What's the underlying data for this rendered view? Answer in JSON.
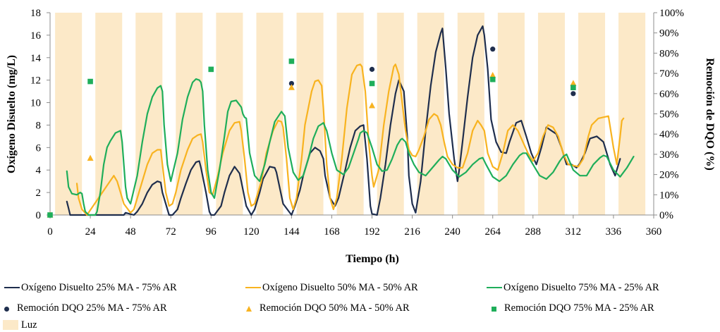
{
  "chart_data": {
    "type": "line",
    "xlabel": "Tiempo (h)",
    "ylabel": "Oxígeno Disuelto (mg/L)",
    "y2label": "Remoción de DQO (%)",
    "xlim": [
      0,
      360
    ],
    "ylim": [
      0,
      18
    ],
    "y2lim": [
      0,
      100
    ],
    "x_ticks": [
      0,
      24,
      48,
      72,
      96,
      120,
      144,
      168,
      192,
      216,
      240,
      264,
      288,
      312,
      336,
      360
    ],
    "y_ticks": [
      0,
      2,
      4,
      6,
      8,
      10,
      12,
      14,
      16,
      18
    ],
    "y2_ticks": [
      "0%",
      "10%",
      "20%",
      "30%",
      "40%",
      "50%",
      "60%",
      "70%",
      "80%",
      "90%",
      "100%"
    ],
    "grid": false,
    "legend_position": "bottom",
    "light_periods": {
      "name": "Luz",
      "color": "#FCE9C8",
      "intervals": [
        [
          3,
          19
        ],
        [
          27,
          43
        ],
        [
          51,
          67
        ],
        [
          75,
          91
        ],
        [
          99,
          115
        ],
        [
          123,
          139
        ],
        [
          147,
          163
        ],
        [
          171,
          187
        ],
        [
          195,
          211
        ],
        [
          219,
          235
        ],
        [
          243,
          259
        ],
        [
          267,
          283
        ],
        [
          291,
          307
        ],
        [
          315,
          331
        ],
        [
          339,
          355
        ]
      ]
    },
    "series": [
      {
        "name": "Oxígeno Disuelto 25% MA - 75% AR",
        "type": "line",
        "color": "#1F2E4D",
        "x": [
          10,
          11,
          12,
          14,
          44,
          45,
          50,
          52,
          55,
          58,
          61,
          64,
          66,
          67,
          70,
          71,
          73,
          76,
          78,
          81,
          84,
          87,
          89,
          90,
          93,
          95,
          96,
          98,
          102,
          104,
          107,
          110,
          113,
          114,
          117,
          120,
          122,
          125,
          127,
          131,
          134,
          135,
          139,
          144,
          146,
          149,
          151,
          155,
          158,
          161,
          163,
          164,
          167,
          170,
          172,
          176,
          179,
          182,
          185,
          187,
          189,
          191,
          192,
          195,
          197,
          200,
          203,
          206,
          208,
          211,
          213,
          214,
          216,
          218,
          221,
          224,
          227,
          230,
          233,
          234,
          236,
          238,
          241,
          243,
          244,
          246,
          249,
          252,
          255,
          258,
          259,
          261,
          263,
          266,
          269,
          272,
          274,
          278,
          281,
          284,
          287,
          290,
          293,
          296,
          299,
          302,
          305,
          308,
          311,
          314,
          316,
          319,
          322,
          326,
          330,
          334,
          337,
          340
        ],
        "y": [
          1.2,
          0.6,
          0,
          0,
          0,
          0.2,
          0,
          0.3,
          1.0,
          2.0,
          2.7,
          3.0,
          2.9,
          2.0,
          0.5,
          0,
          0,
          0.5,
          1.5,
          2.8,
          4.0,
          4.7,
          4.8,
          4.2,
          2.0,
          0.3,
          0,
          0,
          0.8,
          2.0,
          3.5,
          4.3,
          3.7,
          3.0,
          0.8,
          0,
          0.5,
          2.0,
          3.2,
          4.3,
          4.2,
          3.8,
          1.0,
          0,
          0.8,
          2.2,
          3.5,
          5.5,
          6.0,
          5.7,
          5.0,
          3.5,
          1.5,
          0.8,
          1.5,
          4.0,
          6.0,
          7.5,
          7.9,
          8.0,
          5.0,
          0.8,
          0.1,
          0,
          1.5,
          4.5,
          8.0,
          10.8,
          12.0,
          11.0,
          7.0,
          3.5,
          1.0,
          0.2,
          3.0,
          7.5,
          11.5,
          14.5,
          16.2,
          16.6,
          13.0,
          9.0,
          5.0,
          3.0,
          4.0,
          6.5,
          10.5,
          14.0,
          16.0,
          16.8,
          16.0,
          13.0,
          8.5,
          6.5,
          5.6,
          5.5,
          6.5,
          8.2,
          8.4,
          7.0,
          5.5,
          4.5,
          6.0,
          7.8,
          7.5,
          7.2,
          6.0,
          4.5,
          4.5,
          4.2,
          4.6,
          5.5,
          6.8,
          7.0,
          6.5,
          4.5,
          3.5,
          5.0
        ]
      },
      {
        "name": "Oxígeno Disuelto 50% MA - 50% AR",
        "type": "line",
        "color": "#F8B320",
        "x": [
          16,
          17,
          19,
          22,
          38,
          40,
          42,
          44,
          48,
          50,
          54,
          58,
          61,
          64,
          66,
          67,
          69,
          71,
          73,
          75,
          78,
          82,
          85,
          88,
          90,
          91,
          93,
          95,
          97,
          100,
          103,
          107,
          110,
          113,
          114,
          116,
          118,
          120,
          122,
          126,
          129,
          133,
          136,
          138,
          139,
          141,
          143,
          145,
          147,
          150,
          152,
          156,
          158,
          160,
          162,
          163,
          165,
          167,
          169,
          171,
          174,
          177,
          180,
          183,
          185,
          186,
          188,
          190,
          192,
          193,
          196,
          199,
          202,
          205,
          206,
          208,
          210,
          212,
          214,
          216,
          218,
          220,
          223,
          226,
          229,
          231,
          233,
          235,
          237,
          240,
          243,
          246,
          249,
          252,
          255,
          257,
          259,
          261,
          264,
          267,
          270,
          273,
          276,
          279,
          282,
          285,
          288,
          291,
          294,
          297,
          300,
          303,
          306,
          309,
          312,
          315,
          318,
          321,
          323,
          327,
          330,
          333,
          336,
          338,
          340,
          341,
          342
        ],
        "y": [
          2.8,
          1.5,
          0.5,
          0,
          3.5,
          3.0,
          2.0,
          1.0,
          0.2,
          0.5,
          2.5,
          4.5,
          5.5,
          5.8,
          5.8,
          4.5,
          2.0,
          0.8,
          1.0,
          2.0,
          4.0,
          5.8,
          6.8,
          7.1,
          7.2,
          6.5,
          4.0,
          2.0,
          1.8,
          3.5,
          5.5,
          7.5,
          8.2,
          8.3,
          7.5,
          5.0,
          2.0,
          0.8,
          1.0,
          3.0,
          5.5,
          7.5,
          8.4,
          8.3,
          7.8,
          5.0,
          1.5,
          0.5,
          1.5,
          5.0,
          8.0,
          11.0,
          11.9,
          12.0,
          11.5,
          9.5,
          4.5,
          1.5,
          0.5,
          1.5,
          5.0,
          9.5,
          12.5,
          13.3,
          13.4,
          13.2,
          11.0,
          6.5,
          3.5,
          2.5,
          4.0,
          8.0,
          11.0,
          13.2,
          13.4,
          12.5,
          10.0,
          7.5,
          5.8,
          5.3,
          5.2,
          5.8,
          7.0,
          8.5,
          9.0,
          8.8,
          8.0,
          6.5,
          5.2,
          4.5,
          4.2,
          4.2,
          5.5,
          7.5,
          8.4,
          8.0,
          7.5,
          5.5,
          4.3,
          4.0,
          5.5,
          7.5,
          8.0,
          7.5,
          6.5,
          5.5,
          4.8,
          5.5,
          7.0,
          8.0,
          7.8,
          7.0,
          5.5,
          4.5,
          4.4,
          4.3,
          5.0,
          7.0,
          8.0,
          8.6,
          8.7,
          8.8,
          6.0,
          4.5,
          7.0,
          8.4,
          8.6
        ]
      },
      {
        "name": "Oxígeno Disuelto 75% MA - 25% AR",
        "type": "line",
        "color": "#1FAE5A",
        "x": [
          10,
          11,
          13,
          16,
          18,
          19,
          20,
          21,
          23,
          27,
          28,
          30,
          32,
          34,
          36,
          39,
          42,
          43,
          44,
          45,
          46,
          48,
          52,
          55,
          58,
          61,
          64,
          66,
          67,
          68,
          70,
          72,
          76,
          79,
          82,
          85,
          87,
          89,
          90,
          91,
          92,
          94,
          96,
          98,
          101,
          104,
          106,
          108,
          111,
          114,
          115,
          116,
          117,
          119,
          122,
          125,
          128,
          131,
          134,
          138,
          139,
          140,
          142,
          145,
          148,
          151,
          154,
          157,
          160,
          162,
          163,
          165,
          168,
          171,
          175,
          178,
          181,
          184,
          185,
          187,
          189,
          192,
          195,
          198,
          201,
          204,
          207,
          209,
          210,
          212,
          214,
          217,
          220,
          224,
          228,
          232,
          234,
          236,
          240,
          244,
          248,
          252,
          256,
          258,
          260,
          264,
          268,
          272,
          276,
          280,
          282,
          284,
          288,
          292,
          296,
          300,
          304,
          306,
          308,
          312,
          316,
          320,
          324,
          328,
          330,
          332,
          336,
          340,
          344,
          348
        ],
        "y": [
          3.9,
          2.5,
          1.9,
          1.8,
          2.0,
          1.9,
          1.0,
          0.3,
          0,
          0,
          0.3,
          2.0,
          4.5,
          6.0,
          6.6,
          7.3,
          7.5,
          6.5,
          4.5,
          2.5,
          1.5,
          1.0,
          3.5,
          6.5,
          9.0,
          10.5,
          11.3,
          11.5,
          11.0,
          8.0,
          4.5,
          3.0,
          5.5,
          8.5,
          10.5,
          11.8,
          12.1,
          12.0,
          11.8,
          11.0,
          8.0,
          4.0,
          2.0,
          1.5,
          4.0,
          7.0,
          9.2,
          10.1,
          10.2,
          9.6,
          9.0,
          8.7,
          8.6,
          5.5,
          3.5,
          3.0,
          4.5,
          6.5,
          8.3,
          9.2,
          9.0,
          8.8,
          6.0,
          3.8,
          3.1,
          3.5,
          5.0,
          6.8,
          7.9,
          8.1,
          8.2,
          7.5,
          5.5,
          4.0,
          3.6,
          4.2,
          5.5,
          6.8,
          7.3,
          7.5,
          7.3,
          6.0,
          4.5,
          3.9,
          4.0,
          5.0,
          6.2,
          6.7,
          6.8,
          6.5,
          5.5,
          4.5,
          3.8,
          3.5,
          4.2,
          4.9,
          5.2,
          5.0,
          4.0,
          3.4,
          3.8,
          4.5,
          5.0,
          5.1,
          4.5,
          3.4,
          3.0,
          3.5,
          4.5,
          5.3,
          5.5,
          5.5,
          4.5,
          3.5,
          3.2,
          3.8,
          4.8,
          5.2,
          5.4,
          4.0,
          3.5,
          3.5,
          4.5,
          5.1,
          5.3,
          5.2,
          4.0,
          3.4,
          4.2,
          5.2
        ]
      },
      {
        "name": "Remoción DQO 25% MA - 75% AR",
        "type": "scatter",
        "marker": "circle",
        "color": "#1F2E4D",
        "x": [
          0,
          144,
          192,
          264,
          312
        ],
        "y": [
          0,
          65,
          72,
          82,
          60
        ]
      },
      {
        "name": "Remoción DQO 50% MA - 50% AR",
        "type": "scatter",
        "marker": "triangle",
        "color": "#F8B320",
        "x": [
          0,
          24,
          144,
          192,
          264,
          312
        ],
        "y": [
          0,
          28,
          63,
          54,
          69,
          65
        ]
      },
      {
        "name": "Remoción DQO 75% MA - 25% AR",
        "type": "scatter",
        "marker": "square",
        "color": "#1FAE5A",
        "x": [
          0,
          24,
          96,
          144,
          192,
          264,
          312
        ],
        "y": [
          0,
          66,
          72,
          76,
          65,
          67,
          63
        ]
      }
    ]
  }
}
